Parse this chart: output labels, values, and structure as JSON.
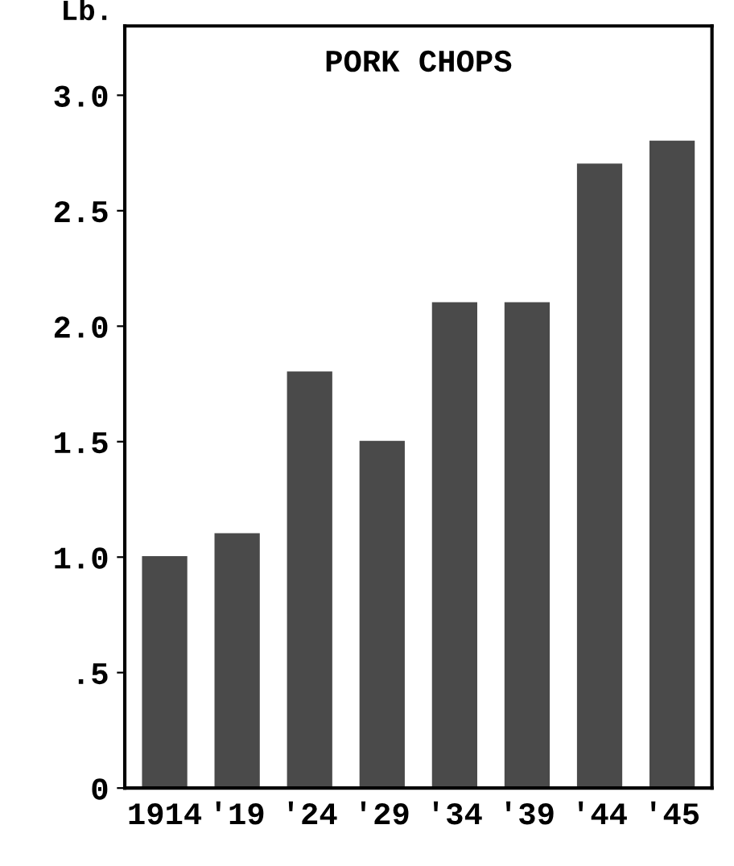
{
  "chart_data": {
    "type": "bar",
    "title": "PORK CHOPS",
    "ylabel": "Lb.",
    "categories": [
      "1914",
      "'19",
      "'24",
      "'29",
      "'34",
      "'39",
      "'44",
      "'45"
    ],
    "values": [
      1.0,
      1.1,
      1.8,
      1.5,
      2.1,
      2.1,
      2.7,
      2.8
    ],
    "color": "#4a4a4a",
    "ylim": [
      0,
      3.3
    ],
    "yticks": [
      0,
      {
        "value": 0.5,
        "label": ".5"
      },
      {
        "value": 1.0,
        "label": "1.0"
      },
      {
        "value": 1.5,
        "label": "1.5"
      },
      {
        "value": 2.0,
        "label": "2.0"
      },
      {
        "value": 2.5,
        "label": "2.5"
      },
      {
        "value": 3.0,
        "label": "3.0"
      }
    ],
    "grid": false
  }
}
